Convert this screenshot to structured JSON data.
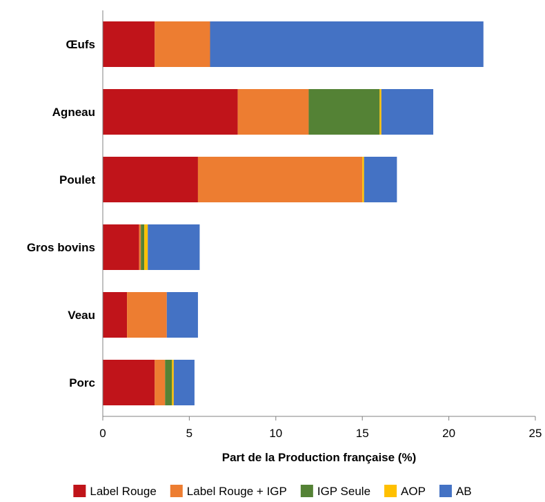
{
  "chart_data": {
    "type": "bar",
    "orientation": "horizontal",
    "stacked": true,
    "categories": [
      "Œufs",
      "Agneau",
      "Poulet",
      "Gros bovins",
      "Veau",
      "Porc"
    ],
    "series": [
      {
        "name": "Label Rouge",
        "color": "#C0141A",
        "values": [
          3.0,
          7.8,
          5.5,
          2.1,
          1.4,
          3.0
        ]
      },
      {
        "name": "Label Rouge + IGP",
        "color": "#ED7D31",
        "values": [
          3.2,
          4.1,
          9.5,
          0.1,
          2.3,
          0.6
        ]
      },
      {
        "name": "IGP Seule",
        "color": "#548235",
        "values": [
          0.0,
          4.1,
          0.0,
          0.2,
          0.0,
          0.4
        ]
      },
      {
        "name": "AOP",
        "color": "#FFC000",
        "values": [
          0.0,
          0.1,
          0.1,
          0.2,
          0.0,
          0.1
        ]
      },
      {
        "name": "AB",
        "color": "#4472C4",
        "values": [
          15.8,
          3.0,
          1.9,
          3.0,
          1.8,
          1.2
        ]
      }
    ],
    "xlabel": "Part de la Production française (%)",
    "ylabel": "",
    "xlim": [
      0,
      25
    ],
    "xticks": [
      0,
      5,
      10,
      15,
      20,
      25
    ],
    "grid": false,
    "legend_position": "bottom"
  }
}
